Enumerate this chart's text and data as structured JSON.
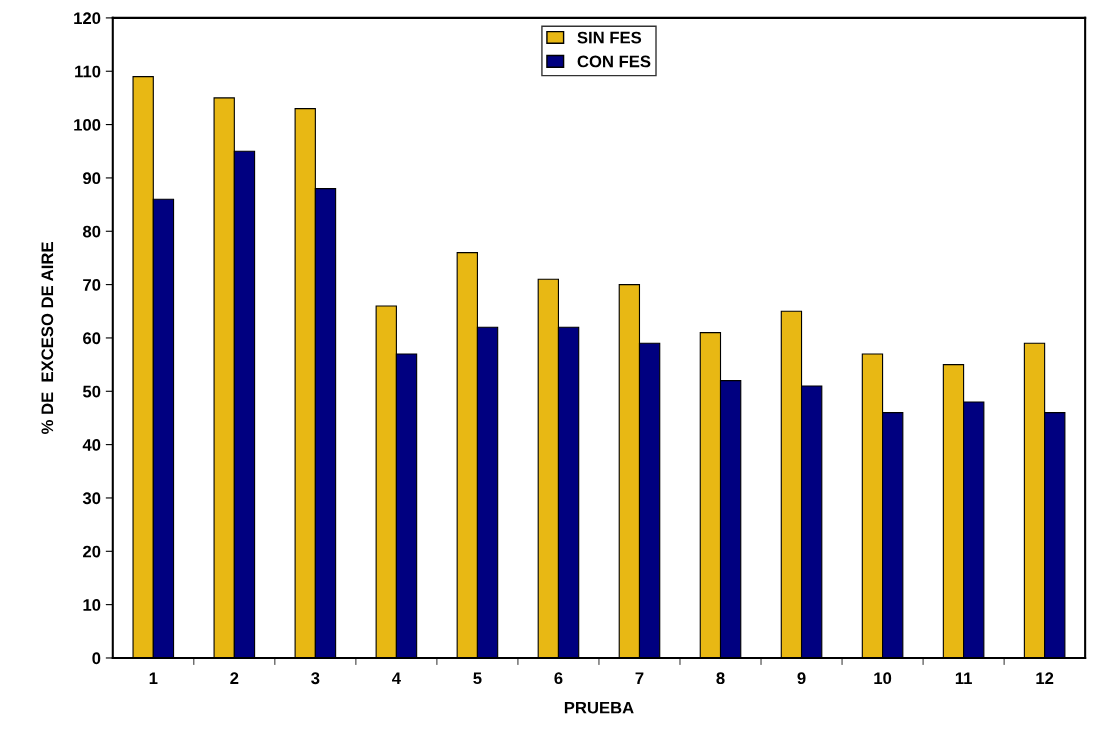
{
  "chart_data": {
    "type": "bar",
    "xlabel": "PRUEBA",
    "ylabel": "% DE  EXCESO DE AIRE",
    "categories": [
      "1",
      "2",
      "3",
      "4",
      "5",
      "6",
      "7",
      "8",
      "9",
      "10",
      "11",
      "12"
    ],
    "series": [
      {
        "name": "SIN FES",
        "color": "#e8b814",
        "values": [
          109,
          105,
          103,
          66,
          76,
          71,
          70,
          61,
          65,
          57,
          55,
          59
        ]
      },
      {
        "name": "CON FES",
        "color": "#000080",
        "values": [
          86,
          95,
          88,
          57,
          62,
          62,
          59,
          52,
          51,
          46,
          48,
          46
        ]
      }
    ],
    "ylim": [
      0,
      120
    ],
    "yticks": [
      0,
      10,
      20,
      30,
      40,
      50,
      60,
      70,
      80,
      90,
      100,
      110,
      120
    ],
    "grid": false,
    "legend": "top"
  }
}
